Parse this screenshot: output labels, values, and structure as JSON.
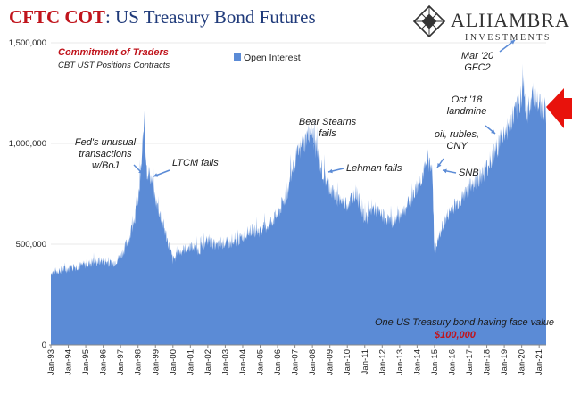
{
  "header": {
    "title_red": "CFTC COT",
    "title_rest": ": US Treasury Bond Futures"
  },
  "logo": {
    "name": "ALHAMBRA",
    "sub": "INVESTMENTS",
    "icon": "diamond-lattice-icon"
  },
  "colors": {
    "area": "#5b8bd6",
    "title_red": "#c0141c",
    "title_blue": "#1f3a7a",
    "arrow": "#e8120c"
  },
  "chart_data": {
    "type": "area",
    "title": "CFTC COT: US Treasury Bond Futures",
    "subtitle": "Commitment of Traders",
    "subtitle2": "CBT UST Positions Contracts",
    "series": [
      {
        "name": "Open Interest"
      }
    ],
    "legend_position": "top-center",
    "ylim": [
      0,
      1500000
    ],
    "y_ticks": [
      "0",
      "500,000",
      "1,000,000",
      "1,500,000"
    ],
    "y_tick_values": [
      0,
      500000,
      1000000,
      1500000
    ],
    "x_ticks": [
      "Jan-93",
      "Jan-94",
      "Jan-95",
      "Jan-96",
      "Jan-97",
      "Jan-98",
      "Jan-99",
      "Jan-00",
      "Jan-01",
      "Jan-02",
      "Jan-03",
      "Jan-04",
      "Jan-05",
      "Jan-06",
      "Jan-07",
      "Jan-08",
      "Jan-09",
      "Jan-10",
      "Jan-11",
      "Jan-12",
      "Jan-13",
      "Jan-14",
      "Jan-15",
      "Jan-16",
      "Jan-17",
      "Jan-18",
      "Jan-19",
      "Jan-20",
      "Jan-21"
    ],
    "xlim": [
      1993.0,
      2021.4
    ],
    "points": [
      [
        1993.0,
        360000
      ],
      [
        1993.5,
        370000
      ],
      [
        1994.0,
        380000
      ],
      [
        1994.5,
        390000
      ],
      [
        1995.0,
        400000
      ],
      [
        1995.5,
        410000
      ],
      [
        1996.0,
        420000
      ],
      [
        1996.5,
        400000
      ],
      [
        1997.0,
        440000
      ],
      [
        1997.5,
        530000
      ],
      [
        1998.0,
        700000
      ],
      [
        1998.2,
        900000
      ],
      [
        1998.35,
        1120000
      ],
      [
        1998.5,
        870000
      ],
      [
        1998.75,
        830000
      ],
      [
        1999.0,
        720000
      ],
      [
        1999.5,
        580000
      ],
      [
        2000.0,
        420000
      ],
      [
        2000.5,
        470000
      ],
      [
        2001.0,
        490000
      ],
      [
        2001.5,
        470000
      ],
      [
        2002.0,
        520000
      ],
      [
        2002.5,
        490000
      ],
      [
        2003.0,
        510000
      ],
      [
        2003.5,
        500000
      ],
      [
        2004.0,
        540000
      ],
      [
        2004.5,
        570000
      ],
      [
        2005.0,
        560000
      ],
      [
        2005.5,
        600000
      ],
      [
        2006.0,
        650000
      ],
      [
        2006.5,
        740000
      ],
      [
        2007.0,
        920000
      ],
      [
        2007.5,
        1000000
      ],
      [
        2007.9,
        1080000
      ],
      [
        2008.2,
        980000
      ],
      [
        2008.6,
        850000
      ],
      [
        2009.0,
        780000
      ],
      [
        2009.5,
        720000
      ],
      [
        2010.0,
        700000
      ],
      [
        2010.5,
        760000
      ],
      [
        2011.0,
        620000
      ],
      [
        2011.5,
        680000
      ],
      [
        2012.0,
        640000
      ],
      [
        2012.5,
        610000
      ],
      [
        2013.0,
        640000
      ],
      [
        2013.5,
        700000
      ],
      [
        2014.0,
        780000
      ],
      [
        2014.5,
        880000
      ],
      [
        2014.85,
        920000
      ],
      [
        2015.0,
        450000
      ],
      [
        2015.2,
        520000
      ],
      [
        2015.5,
        600000
      ],
      [
        2016.0,
        680000
      ],
      [
        2016.5,
        720000
      ],
      [
        2017.0,
        780000
      ],
      [
        2017.5,
        820000
      ],
      [
        2018.0,
        880000
      ],
      [
        2018.5,
        960000
      ],
      [
        2018.8,
        1030000
      ],
      [
        2019.0,
        1050000
      ],
      [
        2019.5,
        1130000
      ],
      [
        2019.8,
        1180000
      ],
      [
        2020.1,
        1300000
      ],
      [
        2020.3,
        1120000
      ],
      [
        2020.6,
        1260000
      ],
      [
        2020.9,
        1200000
      ],
      [
        2021.2,
        1180000
      ],
      [
        2021.4,
        1160000
      ]
    ],
    "annotations": [
      {
        "id": "fed-boj",
        "lines": [
          "Fed's unusual",
          "transactions",
          "w/BoJ"
        ]
      },
      {
        "id": "ltcm",
        "lines": [
          "LTCM fails"
        ]
      },
      {
        "id": "bear-stearns",
        "lines": [
          "Bear Stearns",
          "fails"
        ]
      },
      {
        "id": "lehman",
        "lines": [
          "Lehman fails"
        ]
      },
      {
        "id": "oil-rubles",
        "lines": [
          "oil, rubles,",
          "CNY"
        ]
      },
      {
        "id": "snb",
        "lines": [
          "SNB"
        ]
      },
      {
        "id": "oct18",
        "lines": [
          "Oct '18",
          "landmine"
        ]
      },
      {
        "id": "mar20",
        "lines": [
          "Mar '20",
          "GFC2"
        ]
      }
    ],
    "note": "One US Treasury bond having face value",
    "note_value": "$100,000"
  }
}
